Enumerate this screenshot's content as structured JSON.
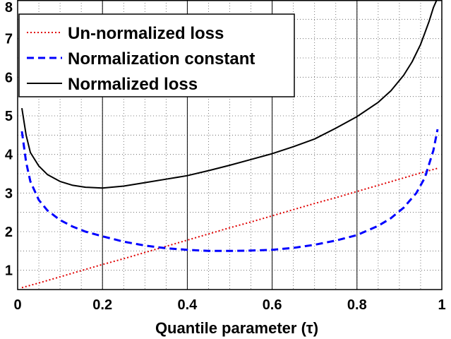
{
  "chart_data": {
    "type": "line",
    "title": "",
    "xlabel": "Quantile parameter (τ)",
    "ylabel": "",
    "xlim": [
      0,
      1
    ],
    "ylim": [
      0.5,
      8
    ],
    "grid": true,
    "legend_position": "top-left",
    "x_ticks": [
      "0",
      "0.2",
      "0.4",
      "0.6",
      "0.8",
      "1"
    ],
    "y_ticks": [
      "1",
      "2",
      "3",
      "4",
      "5",
      "6",
      "7",
      "8"
    ],
    "x_tick_values": [
      0,
      0.2,
      0.4,
      0.6,
      0.8,
      1
    ],
    "y_tick_values": [
      1,
      2,
      3,
      4,
      5,
      6,
      7,
      8
    ],
    "series": [
      {
        "name": "Un-normalized loss",
        "style": "dotted",
        "color": "#e00000",
        "x": [
          0.01,
          0.05,
          0.1,
          0.15,
          0.2,
          0.25,
          0.3,
          0.35,
          0.4,
          0.45,
          0.5,
          0.55,
          0.6,
          0.65,
          0.7,
          0.75,
          0.8,
          0.85,
          0.9,
          0.95,
          0.99
        ],
        "y": [
          0.55,
          0.67,
          0.83,
          0.99,
          1.15,
          1.3,
          1.46,
          1.62,
          1.78,
          1.94,
          2.1,
          2.25,
          2.41,
          2.57,
          2.73,
          2.88,
          3.04,
          3.2,
          3.36,
          3.52,
          3.64
        ]
      },
      {
        "name": "Normalization constant",
        "style": "dashed",
        "color": "#0000ff",
        "x": [
          0.01,
          0.02,
          0.03,
          0.05,
          0.07,
          0.1,
          0.13,
          0.16,
          0.2,
          0.25,
          0.3,
          0.35,
          0.4,
          0.45,
          0.5,
          0.55,
          0.6,
          0.65,
          0.7,
          0.75,
          0.8,
          0.85,
          0.88,
          0.91,
          0.94,
          0.96,
          0.97,
          0.98,
          0.99
        ],
        "y": [
          4.6,
          3.8,
          3.3,
          2.82,
          2.55,
          2.3,
          2.13,
          2.0,
          1.88,
          1.74,
          1.64,
          1.57,
          1.53,
          1.5,
          1.5,
          1.51,
          1.53,
          1.58,
          1.66,
          1.77,
          1.91,
          2.15,
          2.35,
          2.62,
          3.0,
          3.4,
          3.75,
          4.1,
          4.65
        ]
      },
      {
        "name": "Normalized loss",
        "style": "solid",
        "color": "#000000",
        "x": [
          0.01,
          0.02,
          0.03,
          0.05,
          0.07,
          0.1,
          0.13,
          0.16,
          0.2,
          0.25,
          0.3,
          0.35,
          0.4,
          0.45,
          0.5,
          0.55,
          0.6,
          0.65,
          0.7,
          0.75,
          0.8,
          0.85,
          0.88,
          0.91,
          0.93,
          0.95,
          0.96,
          0.97,
          0.98,
          0.99
        ],
        "y": [
          5.2,
          4.5,
          4.05,
          3.7,
          3.48,
          3.3,
          3.2,
          3.15,
          3.13,
          3.18,
          3.27,
          3.36,
          3.45,
          3.58,
          3.72,
          3.87,
          4.02,
          4.2,
          4.4,
          4.68,
          4.98,
          5.35,
          5.65,
          6.05,
          6.4,
          6.85,
          7.15,
          7.45,
          7.8,
          8.05
        ]
      }
    ]
  }
}
